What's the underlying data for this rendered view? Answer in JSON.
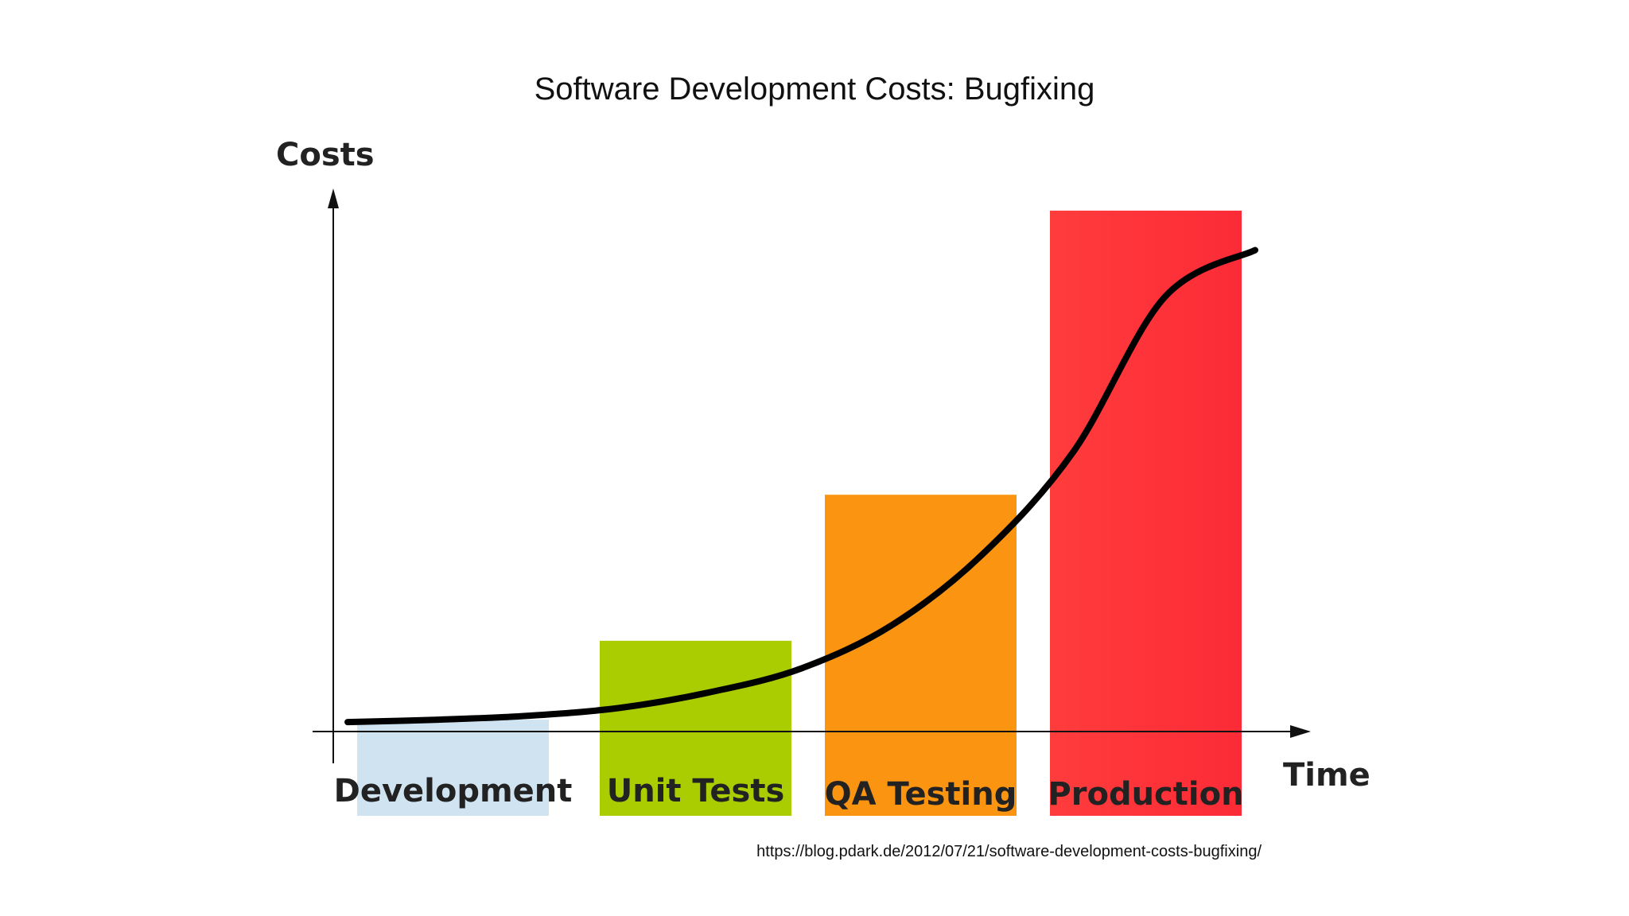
{
  "slide": {
    "title": "Software Development Costs: Bugfixing",
    "source": "https://blog.pdark.de/2012/07/21/software-development-costs-bugfixing/"
  },
  "chart_data": {
    "type": "bar",
    "title": "Software Development Costs: Bugfixing",
    "xlabel": "Time",
    "ylabel": "Costs",
    "categories": [
      "Development",
      "Unit Tests",
      "QA Testing",
      "Production"
    ],
    "values": [
      3,
      23,
      60,
      132
    ],
    "colors": [
      "#cfe3f1",
      "#aacd02",
      "#fb9410",
      "#fe3235"
    ],
    "ylim": [
      0,
      135
    ],
    "axis_ticks": false,
    "grid": false,
    "legend": "none",
    "trend_curve": {
      "type": "line",
      "shape": "exponential",
      "color": "#000000",
      "x": [
        0.0,
        0.1,
        0.2,
        0.3,
        0.4,
        0.5,
        0.6,
        0.7,
        0.8,
        0.9,
        1.0
      ],
      "y": [
        2.4,
        3.0,
        4.0,
        6.0,
        10.0,
        16.0,
        27.0,
        45.0,
        71.0,
        110.0,
        122.0
      ]
    }
  }
}
